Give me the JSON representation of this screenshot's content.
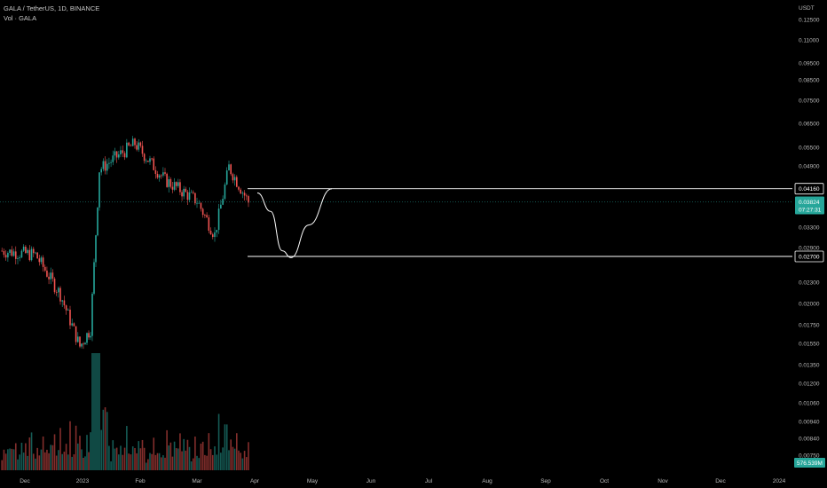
{
  "legend": {
    "symbol": "GALA / TetherUS, 1D, BINANCE",
    "volume": "Vol · GALA"
  },
  "chart_data": {
    "type": "candlestick",
    "currency": "USDT",
    "scale": "log",
    "price_ticks": [
      "0.12500",
      "0.11000",
      "0.09500",
      "0.08500",
      "0.07500",
      "0.06500",
      "0.05500",
      "0.04900",
      "0.04200",
      "0.03300",
      "0.02900",
      "0.02300",
      "0.02000",
      "0.01750",
      "0.01550",
      "0.01350",
      "0.01200",
      "0.01060",
      "0.00940",
      "0.00840",
      "0.00750"
    ],
    "time_ticks": [
      "Dec",
      "2023",
      "Feb",
      "Mar",
      "Apr",
      "May",
      "Jun",
      "Jul",
      "Aug",
      "Sep",
      "Oct",
      "Nov",
      "Dec",
      "2024"
    ],
    "ohlc_series": [
      {
        "label": "Nov",
        "close": 0.028
      },
      {
        "label": "Dec",
        "close": 0.0273
      },
      {
        "label": "Dec",
        "close": 0.0212
      },
      {
        "label": "2023",
        "close": 0.0152
      },
      {
        "label": "2023",
        "close": 0.017
      },
      {
        "label": "2023",
        "close": 0.047
      },
      {
        "label": "Feb",
        "close": 0.052
      },
      {
        "label": "Feb",
        "close": 0.0555
      },
      {
        "label": "Feb",
        "close": 0.044
      },
      {
        "label": "Mar",
        "close": 0.0385
      },
      {
        "label": "Mar",
        "close": 0.031
      },
      {
        "label": "Mar",
        "close": 0.0478
      },
      {
        "label": "Apr",
        "close": 0.0382
      }
    ],
    "current_price": "0.03824",
    "countdown": "07:27:31",
    "volume_label": "576.539M",
    "levels": [
      {
        "value": "0.04160",
        "price": 0.0416
      },
      {
        "value": "0.02700",
        "price": 0.027
      }
    ],
    "projection": [
      {
        "label": "Apr",
        "price": 0.0405
      },
      {
        "label": "Apr",
        "price": 0.036
      },
      {
        "label": "May",
        "price": 0.028
      },
      {
        "label": "May",
        "price": 0.0268
      },
      {
        "label": "May",
        "price": 0.033
      },
      {
        "label": "May",
        "price": 0.0416
      }
    ]
  },
  "colors": {
    "up": "#26a69a",
    "down": "#ef5350",
    "background": "#000000",
    "axis_text": "#b8b8b8",
    "level_line": "#ffffff",
    "price_tag": "#26a69a"
  }
}
